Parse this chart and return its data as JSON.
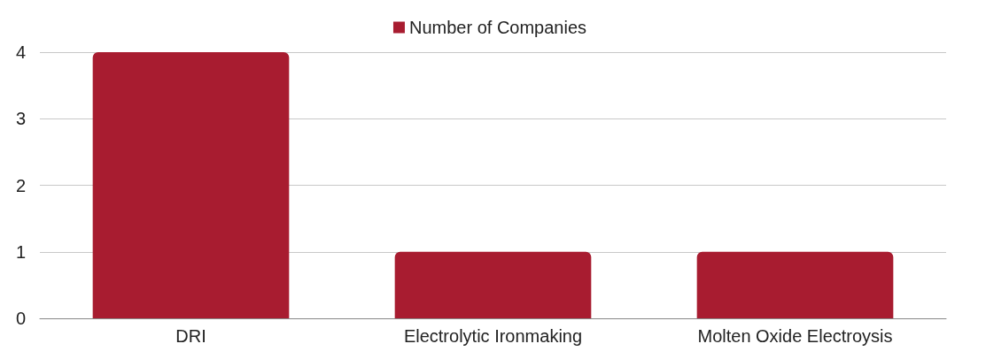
{
  "chart_data": {
    "type": "bar",
    "categories": [
      "DRI",
      "Electrolytic Ironmaking",
      "Molten Oxide Electroysis"
    ],
    "series": [
      {
        "name": "Number of Companies",
        "color": "#a81c30",
        "values": [
          4,
          1,
          1
        ]
      }
    ],
    "ylim": [
      0,
      4
    ],
    "yticks": [
      0,
      1,
      2,
      3,
      4
    ],
    "grid": "y",
    "legend": "top"
  }
}
